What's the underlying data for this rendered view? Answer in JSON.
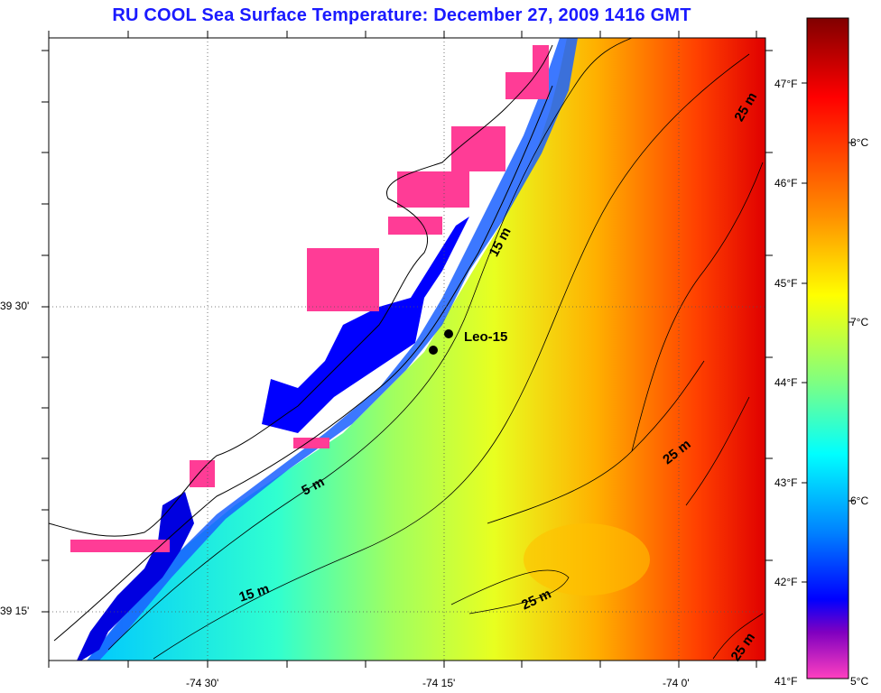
{
  "title": "RU COOL  Sea Surface Temperature:  December 27, 2009 1416 GMT",
  "axes": {
    "x_ticks": [
      "-74 30'",
      "-74 15'",
      "-74 0'"
    ],
    "y_ticks": [
      "39 30'",
      "39 15'"
    ]
  },
  "colorbar": {
    "fahrenheit": [
      "47°F",
      "46°F",
      "45°F",
      "44°F",
      "43°F",
      "42°F",
      "41°F"
    ],
    "celsius": [
      "8°C",
      "7°C",
      "6°C",
      "5°C"
    ],
    "colors": [
      "#800000",
      "#ff0000",
      "#ff8000",
      "#ffff00",
      "#80ff80",
      "#00ffff",
      "#0080ff",
      "#0000ff",
      "#8000c0",
      "#ff40c0"
    ]
  },
  "annotations": {
    "station": "Leo-15",
    "contours": [
      "25 m",
      "15 m",
      "5 m",
      "25 m",
      "15 m",
      "25 m",
      "25 m"
    ]
  },
  "colors": {
    "title": "#1a1aff",
    "land_flag": "#ff3c96",
    "coastal_water": "#0000ff"
  }
}
